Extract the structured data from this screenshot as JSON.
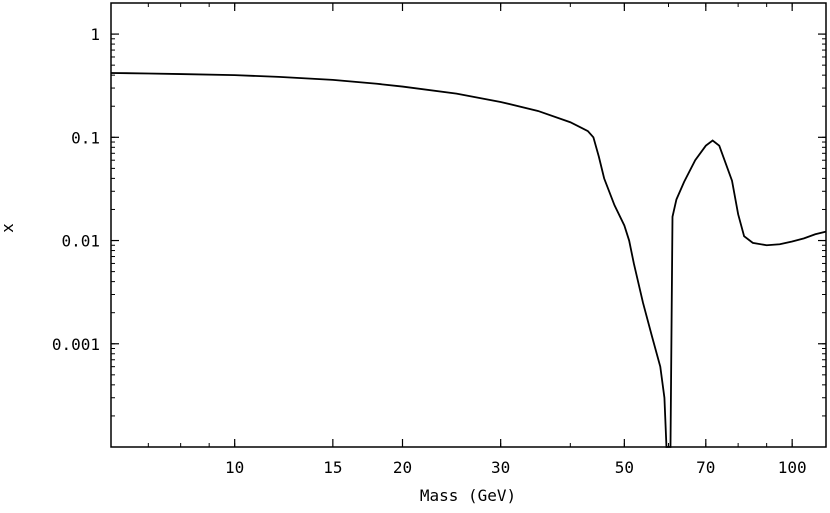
{
  "chart_data": {
    "type": "line",
    "title": "",
    "xlabel": "Mass (GeV)",
    "ylabel": "x",
    "x_scale": "log",
    "y_scale": "log",
    "xlim": [
      6,
      115
    ],
    "ylim": [
      0.0001,
      2
    ],
    "grid": false,
    "x_ticks": [
      {
        "value": 10,
        "label": "10"
      },
      {
        "value": 15,
        "label": "15"
      },
      {
        "value": 20,
        "label": "20"
      },
      {
        "value": 30,
        "label": "30"
      },
      {
        "value": 50,
        "label": "50"
      },
      {
        "value": 70,
        "label": "70"
      },
      {
        "value": 100,
        "label": "100"
      }
    ],
    "y_ticks": [
      {
        "value": 1,
        "label": "1"
      },
      {
        "value": 0.1,
        "label": "0.1"
      },
      {
        "value": 0.01,
        "label": "0.01"
      },
      {
        "value": 0.001,
        "label": "0.001"
      }
    ],
    "series": [
      {
        "x": [
          6,
          7,
          8,
          10,
          12,
          15,
          18,
          20,
          25,
          30,
          35,
          40,
          43,
          44,
          45,
          46,
          48,
          50,
          51,
          52,
          54,
          56,
          58,
          59,
          59.5,
          60,
          60.5,
          61,
          62,
          64,
          67,
          70,
          72,
          74,
          78,
          80,
          82,
          85,
          90,
          95,
          100,
          105,
          110,
          115
        ],
        "y": [
          0.42,
          0.415,
          0.41,
          0.4,
          0.385,
          0.36,
          0.33,
          0.31,
          0.265,
          0.22,
          0.18,
          0.14,
          0.115,
          0.1,
          0.065,
          0.04,
          0.022,
          0.014,
          0.01,
          0.006,
          0.0025,
          0.0012,
          0.0006,
          0.0003,
          0.0001,
          0.0001,
          0.0001,
          0.017,
          0.025,
          0.037,
          0.06,
          0.083,
          0.093,
          0.083,
          0.038,
          0.018,
          0.011,
          0.0095,
          0.009,
          0.0092,
          0.0098,
          0.0105,
          0.0115,
          0.0122
        ]
      }
    ]
  }
}
